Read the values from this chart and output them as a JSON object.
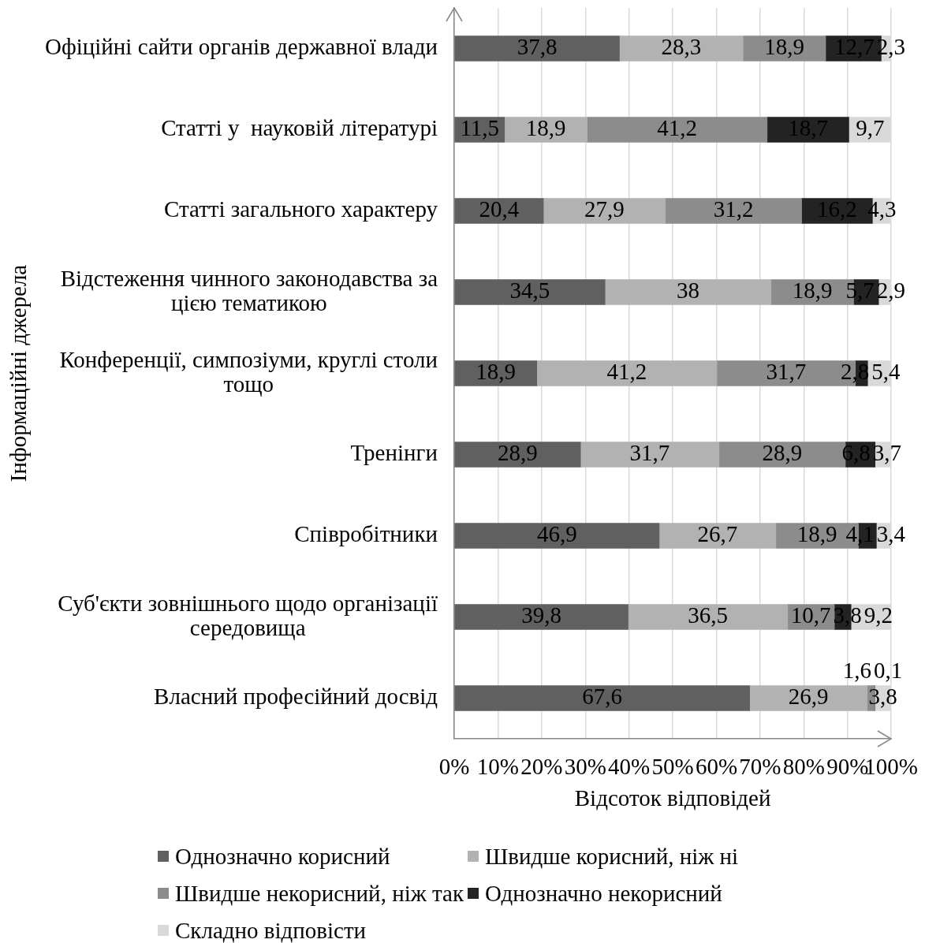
{
  "chart_data": {
    "type": "bar",
    "orientation": "horizontal",
    "stacked": true,
    "xlabel": "Відсоток відповідей",
    "ylabel": "Інформаційні джерела",
    "categories": [
      "Офіційні сайти органів державної влади",
      "Статті у  науковій літературі",
      "Статті загального характеру",
      "Відстеження чинного законодавства за цією тематикою",
      "Конференції, симпозіуми, круглі столи тощо",
      "Тренінги",
      "Співробітники",
      "Суб'єкти зовнішнього щодо організації середовища",
      "Власний професійний досвід"
    ],
    "series": [
      {
        "name": "Однозначно корисний",
        "color": "#606060",
        "values": [
          37.8,
          11.5,
          20.4,
          34.5,
          18.9,
          28.9,
          46.9,
          39.8,
          67.6
        ],
        "value_labels": [
          "37,8",
          "11,5",
          "20,4",
          "34,5",
          "18,9",
          "28,9",
          "46,9",
          "39,8",
          "67,6"
        ]
      },
      {
        "name": "Швидше корисний, ніж ні",
        "color": "#b2b2b2",
        "values": [
          28.3,
          18.9,
          27.9,
          38,
          41.2,
          31.7,
          26.7,
          36.5,
          26.9
        ],
        "value_labels": [
          "28,3",
          "18,9",
          "27,9",
          "38",
          "41,2",
          "31,7",
          "26,7",
          "36,5",
          "26,9"
        ]
      },
      {
        "name": "Швидше некорисний, ніж так",
        "color": "#8c8c8c",
        "values": [
          18.9,
          41.2,
          31.2,
          18.9,
          31.7,
          28.9,
          18.9,
          10.7,
          1.6
        ],
        "value_labels": [
          "18,9",
          "41,2",
          "31,2",
          "18,9",
          "31,7",
          "28,9",
          "18,9",
          "10,7",
          "1,6"
        ]
      },
      {
        "name": "Однозначно некорисний",
        "color": "#232323",
        "values": [
          12.7,
          18.7,
          16.2,
          5.7,
          2.8,
          6.8,
          4.1,
          3.8,
          0.1
        ],
        "value_labels": [
          "12,7",
          "18,7",
          "16,2",
          "5,7",
          "2,8",
          "6,8",
          "4,1",
          "3,8",
          "0,1"
        ]
      },
      {
        "name": "Складно відповісти",
        "color": "#d9d9d9",
        "values": [
          2.3,
          9.7,
          4.3,
          2.9,
          5.4,
          3.7,
          3.4,
          9.2,
          3.8
        ],
        "value_labels": [
          "2,3",
          "9,7",
          "4,3",
          "2,9",
          "5,4",
          "3,7",
          "3,4",
          "9,2",
          "3,8"
        ]
      }
    ],
    "xlim": [
      0,
      100
    ],
    "xticks": [
      {
        "value": 0,
        "label": "0%"
      },
      {
        "value": 10,
        "label": "10%"
      },
      {
        "value": 20,
        "label": "20%"
      },
      {
        "value": 30,
        "label": "30%"
      },
      {
        "value": 40,
        "label": "40%"
      },
      {
        "value": 50,
        "label": "50%"
      },
      {
        "value": 60,
        "label": "60%"
      },
      {
        "value": 70,
        "label": "70%"
      },
      {
        "value": 80,
        "label": "80%"
      },
      {
        "value": 90,
        "label": "90%"
      },
      {
        "value": 100,
        "label": "100%"
      }
    ],
    "grid": "x",
    "legend": "bottom"
  }
}
